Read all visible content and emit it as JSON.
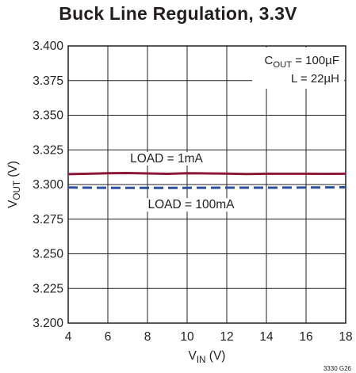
{
  "chart_data": {
    "type": "line",
    "title": "Buck Line Regulation, 3.3V",
    "xlabel": "V_IN (V)",
    "ylabel": "V_OUT (V)",
    "xlim": [
      4,
      18
    ],
    "ylim": [
      3.2,
      3.4
    ],
    "xticks": [
      4,
      6,
      8,
      10,
      12,
      14,
      16,
      18
    ],
    "yticks": [
      3.2,
      3.225,
      3.25,
      3.275,
      3.3,
      3.325,
      3.35,
      3.375,
      3.4
    ],
    "ytick_labels": [
      "3.200",
      "3.225",
      "3.250",
      "3.275",
      "3.300",
      "3.325",
      "3.350",
      "3.375",
      "3.400"
    ],
    "grid": true,
    "annotations": [
      {
        "text": "C_OUT = 100µF",
        "position": "top-right"
      },
      {
        "text": "L = 22µH",
        "position": "top-right"
      }
    ],
    "series": [
      {
        "name": "LOAD = 1mA",
        "color": "#8b1a3a",
        "dash": "solid",
        "x": [
          4,
          5,
          6,
          7,
          8,
          9,
          10,
          11,
          12,
          13,
          14,
          15,
          16,
          17,
          18
        ],
        "y": [
          3.3075,
          3.3078,
          3.3081,
          3.3083,
          3.308,
          3.3077,
          3.3082,
          3.308,
          3.3079,
          3.3076,
          3.3078,
          3.3078,
          3.3078,
          3.3077,
          3.3078
        ]
      },
      {
        "name": "LOAD = 100mA",
        "color": "#2f4f9f",
        "dash": "dashed",
        "x": [
          4,
          6,
          8,
          10,
          12,
          14,
          16,
          18
        ],
        "y": [
          3.2978,
          3.2976,
          3.2976,
          3.2976,
          3.2977,
          3.2977,
          3.2978,
          3.298
        ]
      }
    ]
  },
  "figure_id": "3330 G26"
}
